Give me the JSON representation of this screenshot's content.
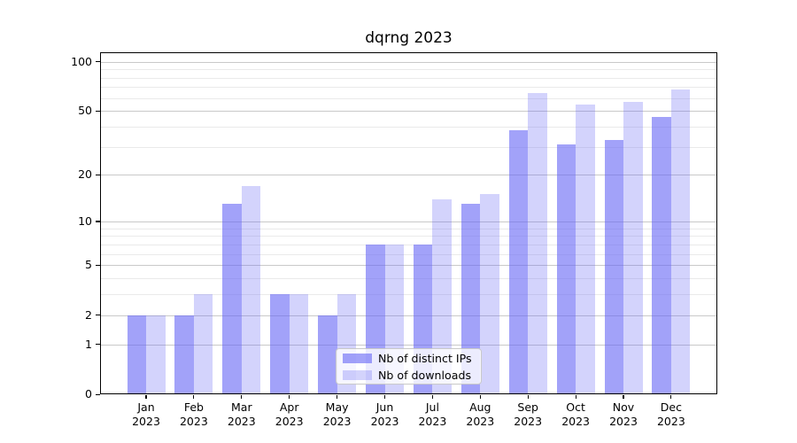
{
  "chart_data": {
    "type": "bar",
    "title": "dqrng 2023",
    "year_label": "2023",
    "categories": [
      "Jan",
      "Feb",
      "Mar",
      "Apr",
      "May",
      "Jun",
      "Jul",
      "Aug",
      "Sep",
      "Oct",
      "Nov",
      "Dec"
    ],
    "series": [
      {
        "name": "Nb of distinct IPs",
        "values": [
          2,
          2,
          13,
          3,
          2,
          7,
          7,
          13,
          38,
          31,
          33,
          46
        ]
      },
      {
        "name": "Nb of downloads",
        "values": [
          2,
          3,
          17,
          3,
          3,
          7,
          14,
          15,
          64,
          55,
          57,
          68
        ]
      }
    ],
    "y_axis": {
      "scale": "log1p",
      "ticks": [
        0,
        1,
        2,
        5,
        10,
        20,
        50,
        100
      ],
      "minor_gridlines": [
        3,
        4,
        6,
        7,
        8,
        9,
        30,
        40,
        60,
        70,
        80,
        90
      ],
      "max_value": 114
    },
    "legend": {
      "position": "inside-bottom-center"
    },
    "grid": true
  },
  "colors": {
    "bar_ips": "#6969F59E",
    "bar_downloads": "#6969F54A",
    "grid_major": "#c9c9c9",
    "grid_minor": "#eaeaea",
    "axis": "#000000",
    "background": "#ffffff"
  }
}
